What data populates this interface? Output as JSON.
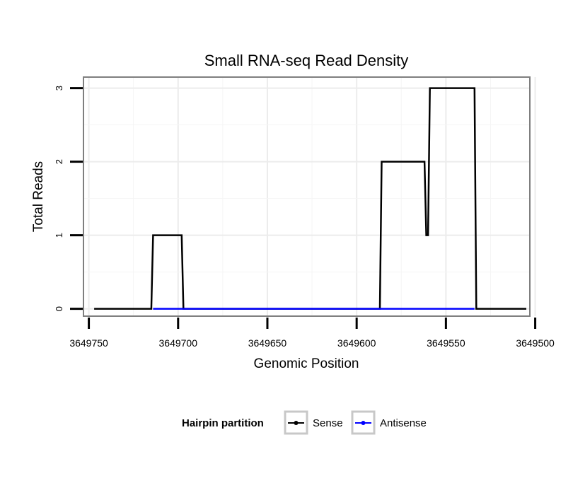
{
  "chart_data": {
    "type": "line",
    "title": "Small RNA-seq Read Density",
    "xlabel": "Genomic Position",
    "ylabel": "Total Reads",
    "x_reversed": true,
    "xlim": [
      3649753,
      3649503
    ],
    "ylim": [
      -0.1,
      3.15
    ],
    "x_ticks": [
      3649750,
      3649700,
      3649650,
      3649600,
      3649550,
      3649500
    ],
    "x_tick_labels": [
      "3649750",
      "3649700",
      "3649650",
      "3649600",
      "3649550",
      "3649500"
    ],
    "y_ticks": [
      0,
      1,
      2,
      3
    ],
    "y_tick_labels": [
      "0",
      "1",
      "2",
      "3"
    ],
    "grid": true,
    "legend": {
      "title": "Hairpin partition",
      "position": "bottom",
      "entries": [
        "Sense",
        "Antisense"
      ]
    },
    "series": [
      {
        "name": "Sense",
        "color": "#000000",
        "x": [
          3649747,
          3649715,
          3649714,
          3649698,
          3649697,
          3649587,
          3649586,
          3649562,
          3649561,
          3649560,
          3649559,
          3649534,
          3649533,
          3649505
        ],
        "y": [
          0,
          0,
          1,
          1,
          0,
          0,
          2,
          2,
          1,
          1,
          3,
          3,
          0,
          0
        ]
      },
      {
        "name": "Antisense",
        "color": "#0000ff",
        "x": [
          3649714,
          3649698,
          3649586,
          3649534
        ],
        "y": [
          0,
          0,
          0,
          0
        ]
      }
    ]
  }
}
